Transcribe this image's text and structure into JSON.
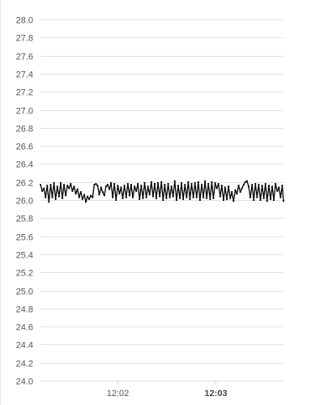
{
  "chart_data": {
    "type": "line",
    "title": "",
    "xlabel": "",
    "ylabel": "",
    "ylim": [
      24.0,
      28.0
    ],
    "yticks": [
      "24.0",
      "24.2",
      "24.4",
      "24.6",
      "24.8",
      "25.0",
      "25.2",
      "25.4",
      "25.6",
      "25.8",
      "26.0",
      "26.2",
      "26.4",
      "26.6",
      "26.8",
      "27.0",
      "27.2",
      "27.4",
      "27.6",
      "27.8",
      "28.0"
    ],
    "xticks": [
      {
        "label": "12:02",
        "minute": 2,
        "major": false
      },
      {
        "label": "12:03",
        "minute": 3,
        "major": true
      }
    ],
    "xlim_minutes": [
      1.21,
      3.7
    ],
    "grid": true,
    "legend": "none",
    "series": [
      {
        "color": "#000000",
        "x_minutes": [
          1.21,
          1.228,
          1.245,
          1.262,
          1.279,
          1.296,
          1.314,
          1.331,
          1.348,
          1.365,
          1.382,
          1.4,
          1.417,
          1.434,
          1.451,
          1.468,
          1.486,
          1.503,
          1.52,
          1.537,
          1.554,
          1.572,
          1.589,
          1.606,
          1.623,
          1.64,
          1.658,
          1.675,
          1.692,
          1.709,
          1.726,
          1.744,
          1.761,
          1.778,
          1.795,
          1.812,
          1.83,
          1.847,
          1.864,
          1.881,
          1.898,
          1.916,
          1.933,
          1.95,
          1.967,
          1.984,
          2.002,
          2.019,
          2.036,
          2.053,
          2.07,
          2.088,
          2.105,
          2.122,
          2.139,
          2.156,
          2.174,
          2.191,
          2.208,
          2.225,
          2.242,
          2.26,
          2.277,
          2.294,
          2.311,
          2.328,
          2.346,
          2.363,
          2.38,
          2.397,
          2.414,
          2.432,
          2.449,
          2.466,
          2.483,
          2.5,
          2.518,
          2.535,
          2.552,
          2.569,
          2.586,
          2.604,
          2.621,
          2.638,
          2.655,
          2.672,
          2.69,
          2.707,
          2.724,
          2.741,
          2.758,
          2.776,
          2.793,
          2.81,
          2.827,
          2.844,
          2.862,
          2.879,
          2.896,
          2.913,
          2.93,
          2.948,
          2.965,
          2.982,
          2.999,
          3.016,
          3.034,
          3.051,
          3.068,
          3.085,
          3.102,
          3.12,
          3.137,
          3.154,
          3.171,
          3.188,
          3.206,
          3.223,
          3.24,
          3.257,
          3.274,
          3.292,
          3.309,
          3.326,
          3.343,
          3.36,
          3.378,
          3.395,
          3.412,
          3.429,
          3.446,
          3.464,
          3.481,
          3.498,
          3.515,
          3.532,
          3.55,
          3.567,
          3.584,
          3.601,
          3.618,
          3.636,
          3.653,
          3.67,
          3.687,
          3.7
        ],
        "y": [
          26.17,
          26.1,
          26.13,
          26.03,
          26.16,
          25.98,
          26.17,
          26.03,
          26.19,
          26.01,
          26.15,
          26.04,
          26.19,
          26.02,
          26.17,
          26.05,
          26.16,
          26.13,
          26.18,
          26.1,
          26.15,
          26.07,
          26.12,
          26.03,
          26.09,
          26.01,
          26.06,
          25.98,
          26.04,
          26.01,
          26.05,
          26.03,
          26.17,
          26.18,
          26.16,
          26.06,
          26.14,
          26.09,
          26.05,
          26.15,
          26.17,
          26.12,
          26.19,
          26.03,
          26.18,
          26.0,
          26.16,
          26.07,
          26.14,
          26.02,
          26.16,
          26.03,
          26.18,
          26.05,
          26.17,
          26.03,
          26.15,
          26.1,
          26.18,
          26.01,
          26.16,
          26.02,
          26.19,
          26.03,
          26.15,
          26.06,
          26.2,
          26.04,
          26.18,
          26.02,
          26.19,
          26.04,
          26.2,
          26.0,
          26.17,
          26.02,
          26.18,
          26.03,
          26.15,
          26.04,
          26.21,
          26.0,
          26.16,
          26.02,
          26.19,
          26.01,
          26.17,
          26.03,
          26.2,
          26.01,
          26.18,
          26.03,
          26.19,
          26.03,
          26.2,
          26.0,
          26.17,
          26.03,
          26.21,
          26.02,
          26.18,
          26.01,
          26.2,
          26.02,
          26.19,
          26.13,
          26.18,
          26.04,
          26.16,
          26.0,
          26.14,
          26.01,
          26.15,
          26.02,
          26.09,
          25.99,
          26.11,
          26.07,
          26.16,
          26.09,
          26.13,
          26.17,
          26.2,
          26.21,
          26.15,
          26.03,
          26.17,
          26.0,
          26.18,
          26.03,
          26.17,
          26.0,
          26.16,
          26.02,
          26.18,
          25.99,
          26.16,
          26.01,
          26.15,
          26.0,
          26.18,
          26.1,
          26.14,
          26.03,
          26.16,
          25.99
        ]
      }
    ]
  }
}
